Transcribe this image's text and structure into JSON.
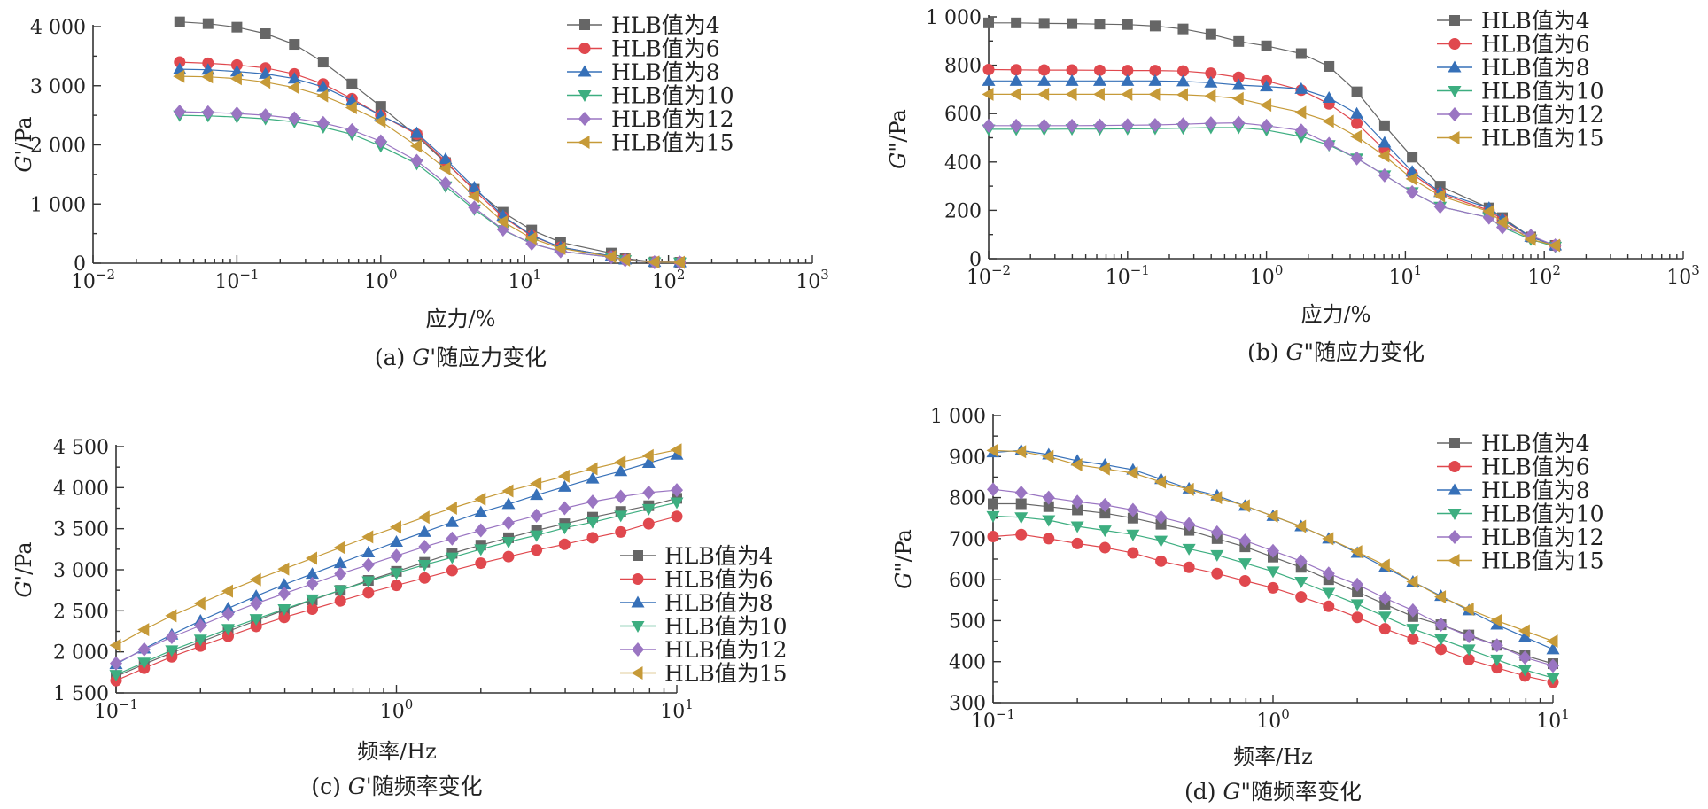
{
  "chart_data": [
    {
      "panel": "a",
      "type": "line",
      "xscale": "log",
      "xlim": [
        0.01,
        1000
      ],
      "ylim": [
        0,
        4000
      ],
      "xticks": [
        0.01,
        0.1,
        1,
        10,
        100,
        1000
      ],
      "xtick_labels": [
        [
          "10",
          "−2"
        ],
        [
          "10",
          "−1"
        ],
        [
          "10",
          "0"
        ],
        [
          "10",
          "1"
        ],
        [
          "10",
          "2"
        ],
        [
          "10",
          "3"
        ]
      ],
      "yticks": [
        0,
        1000,
        2000,
        3000,
        4000
      ],
      "ytick_labels": [
        "0",
        "1 000",
        "2 000",
        "3 000",
        "4 000"
      ],
      "xlabel": "应力/%",
      "ylabel": "G'/Pa",
      "caption": "(a) G'随应力变化",
      "legend": "top-right",
      "x": [
        0.04,
        0.063,
        0.1,
        0.158,
        0.251,
        0.398,
        0.631,
        1.0,
        1.78,
        2.82,
        4.47,
        7.08,
        11.2,
        17.8,
        40,
        50,
        80,
        120
      ],
      "series": [
        {
          "name": "HLB值为4",
          "color": "#666666",
          "marker": "square",
          "values": [
            4080,
            4050,
            3990,
            3880,
            3700,
            3400,
            3030,
            2650,
            2150,
            1700,
            1250,
            860,
            560,
            350,
            170,
            80,
            20,
            15
          ]
        },
        {
          "name": "HLB值为6",
          "color": "#e0484e",
          "marker": "circle",
          "values": [
            3400,
            3380,
            3350,
            3300,
            3200,
            3030,
            2780,
            2500,
            2180,
            1720,
            1230,
            780,
            460,
            270,
            120,
            60,
            20,
            15
          ]
        },
        {
          "name": "HLB值为8",
          "color": "#3670b8",
          "marker": "triangle-up",
          "values": [
            3280,
            3270,
            3240,
            3200,
            3120,
            2980,
            2750,
            2500,
            2200,
            1760,
            1280,
            800,
            470,
            270,
            120,
            60,
            20,
            15
          ]
        },
        {
          "name": "HLB值为10",
          "color": "#3dae80",
          "marker": "triangle-down",
          "values": [
            2500,
            2490,
            2470,
            2440,
            2390,
            2300,
            2180,
            1980,
            1680,
            1300,
            910,
            560,
            330,
            200,
            100,
            50,
            15,
            12
          ]
        },
        {
          "name": "HLB值为12",
          "color": "#9a75c2",
          "marker": "diamond",
          "values": [
            2560,
            2550,
            2530,
            2500,
            2450,
            2370,
            2250,
            2060,
            1730,
            1350,
            940,
            570,
            330,
            200,
            100,
            50,
            15,
            12
          ]
        },
        {
          "name": "HLB值为15",
          "color": "#c69a38",
          "marker": "triangle-left",
          "values": [
            3160,
            3150,
            3120,
            3060,
            2970,
            2830,
            2630,
            2400,
            1980,
            1600,
            1130,
            700,
            420,
            250,
            110,
            55,
            18,
            14
          ]
        }
      ]
    },
    {
      "panel": "b",
      "type": "line",
      "xscale": "log",
      "xlim": [
        0.01,
        1000
      ],
      "ylim": [
        0,
        1000
      ],
      "xticks": [
        0.01,
        0.1,
        1,
        10,
        100,
        1000
      ],
      "xtick_labels": [
        [
          "10",
          "−2"
        ],
        [
          "10",
          "−1"
        ],
        [
          "10",
          "0"
        ],
        [
          "10",
          "1"
        ],
        [
          "10",
          "2"
        ],
        [
          "10",
          "3"
        ]
      ],
      "yticks": [
        0,
        200,
        400,
        600,
        800,
        1000
      ],
      "ytick_labels": [
        "0",
        "200",
        "400",
        "600",
        "800",
        "1 000"
      ],
      "xlabel": "应力/%",
      "ylabel": "G\"/Pa",
      "caption": "(b) G\"随应力变化",
      "legend": "top-right",
      "x": [
        0.01,
        0.0158,
        0.0251,
        0.0398,
        0.0631,
        0.1,
        0.158,
        0.251,
        0.398,
        0.631,
        1.0,
        1.78,
        2.82,
        4.47,
        7.08,
        11.2,
        17.8,
        40,
        50,
        80,
        120
      ],
      "series": [
        {
          "name": "HLB值为4",
          "color": "#666666",
          "marker": "square",
          "values": [
            975,
            975,
            973,
            972,
            970,
            968,
            962,
            950,
            928,
            898,
            880,
            848,
            795,
            690,
            550,
            420,
            300,
            210,
            170,
            90,
            55
          ]
        },
        {
          "name": "HLB值为6",
          "color": "#e0484e",
          "marker": "circle",
          "values": [
            782,
            781,
            780,
            780,
            779,
            778,
            778,
            776,
            767,
            750,
            735,
            697,
            640,
            560,
            450,
            350,
            270,
            200,
            160,
            90,
            55
          ]
        },
        {
          "name": "HLB值为8",
          "color": "#3670b8",
          "marker": "triangle-up",
          "values": [
            735,
            735,
            735,
            735,
            735,
            735,
            735,
            733,
            728,
            718,
            712,
            702,
            665,
            600,
            480,
            360,
            275,
            210,
            165,
            90,
            55
          ]
        },
        {
          "name": "HLB值为10",
          "color": "#3dae80",
          "marker": "triangle-down",
          "values": [
            535,
            535,
            535,
            536,
            536,
            537,
            538,
            540,
            542,
            542,
            532,
            505,
            470,
            415,
            345,
            275,
            215,
            170,
            130,
            80,
            50
          ]
        },
        {
          "name": "HLB值为12",
          "color": "#9a75c2",
          "marker": "diamond",
          "values": [
            550,
            550,
            550,
            550,
            551,
            552,
            553,
            556,
            560,
            562,
            550,
            530,
            475,
            415,
            345,
            275,
            215,
            170,
            130,
            95,
            55
          ]
        },
        {
          "name": "HLB值为15",
          "color": "#c69a38",
          "marker": "triangle-left",
          "values": [
            680,
            680,
            680,
            680,
            680,
            680,
            680,
            678,
            673,
            662,
            635,
            605,
            568,
            505,
            425,
            330,
            260,
            195,
            150,
            80,
            55
          ]
        }
      ]
    },
    {
      "panel": "c",
      "type": "line",
      "xscale": "log",
      "xlim": [
        0.1,
        10
      ],
      "ylim": [
        1500,
        4500
      ],
      "xticks": [
        0.1,
        1,
        10
      ],
      "xtick_labels": [
        [
          "10",
          "−1"
        ],
        [
          "10",
          "0"
        ],
        [
          "10",
          "1"
        ]
      ],
      "yticks": [
        1500,
        2000,
        2500,
        3000,
        3500,
        4000,
        4500
      ],
      "ytick_labels": [
        "1 500",
        "2 000",
        "2 500",
        "3 000",
        "3 500",
        "4 000",
        "4 500"
      ],
      "xlabel": "频率/Hz",
      "ylabel": "G'/Pa",
      "caption": "(c) G'随频率变化",
      "legend": "lower-right",
      "x": [
        0.1,
        0.126,
        0.158,
        0.2,
        0.251,
        0.316,
        0.398,
        0.501,
        0.631,
        0.794,
        1.0,
        1.26,
        1.58,
        2.0,
        2.51,
        3.16,
        3.98,
        5.01,
        6.31,
        7.94,
        10.0
      ],
      "series": [
        {
          "name": "HLB值为4",
          "color": "#666666",
          "marker": "square",
          "values": [
            1700,
            1850,
            1990,
            2120,
            2250,
            2380,
            2510,
            2630,
            2750,
            2870,
            2980,
            3090,
            3200,
            3300,
            3390,
            3480,
            3560,
            3640,
            3710,
            3780,
            3870
          ]
        },
        {
          "name": "HLB值为6",
          "color": "#e0484e",
          "marker": "circle",
          "values": [
            1650,
            1800,
            1940,
            2070,
            2190,
            2310,
            2420,
            2520,
            2620,
            2720,
            2810,
            2900,
            2990,
            3080,
            3160,
            3240,
            3310,
            3390,
            3460,
            3560,
            3650
          ]
        },
        {
          "name": "HLB值为8",
          "color": "#3670b8",
          "marker": "triangle-up",
          "values": [
            1850,
            2040,
            2210,
            2380,
            2530,
            2680,
            2820,
            2950,
            3080,
            3210,
            3340,
            3460,
            3580,
            3700,
            3800,
            3910,
            4010,
            4110,
            4200,
            4300,
            4400
          ]
        },
        {
          "name": "HLB值为10",
          "color": "#3dae80",
          "marker": "triangle-down",
          "values": [
            1720,
            1870,
            2020,
            2150,
            2280,
            2400,
            2520,
            2640,
            2750,
            2860,
            2960,
            3060,
            3150,
            3250,
            3340,
            3420,
            3510,
            3580,
            3660,
            3740,
            3820
          ]
        },
        {
          "name": "HLB值为12",
          "color": "#9a75c2",
          "marker": "diamond",
          "values": [
            1860,
            2030,
            2180,
            2320,
            2460,
            2590,
            2710,
            2830,
            2950,
            3060,
            3170,
            3280,
            3380,
            3480,
            3570,
            3660,
            3750,
            3830,
            3890,
            3940,
            3970
          ]
        },
        {
          "name": "HLB值为15",
          "color": "#c69a38",
          "marker": "triangle-left",
          "values": [
            2080,
            2270,
            2440,
            2590,
            2740,
            2880,
            3010,
            3140,
            3270,
            3400,
            3520,
            3640,
            3750,
            3860,
            3960,
            4050,
            4140,
            4230,
            4310,
            4390,
            4460
          ]
        }
      ]
    },
    {
      "panel": "d",
      "type": "line",
      "xscale": "log",
      "xlim": [
        0.1,
        10
      ],
      "ylim": [
        300,
        1000
      ],
      "xticks": [
        0.1,
        1,
        10
      ],
      "xtick_labels": [
        [
          "10",
          "−1"
        ],
        [
          "10",
          "0"
        ],
        [
          "10",
          "1"
        ]
      ],
      "yticks": [
        300,
        400,
        500,
        600,
        700,
        800,
        900,
        1000
      ],
      "ytick_labels": [
        "300",
        "400",
        "500",
        "600",
        "700",
        "800",
        "900",
        "1 000"
      ],
      "xlabel": "频率/Hz",
      "ylabel": "G\"/Pa",
      "caption": "(d) G\"随频率变化",
      "legend": "top-right",
      "x": [
        0.1,
        0.126,
        0.158,
        0.2,
        0.251,
        0.316,
        0.398,
        0.501,
        0.631,
        0.794,
        1.0,
        1.26,
        1.58,
        2.0,
        2.51,
        3.16,
        3.98,
        5.01,
        6.31,
        7.94,
        10.0
      ],
      "series": [
        {
          "name": "HLB值为4",
          "color": "#666666",
          "marker": "square",
          "values": [
            785,
            785,
            778,
            770,
            762,
            750,
            735,
            720,
            700,
            680,
            655,
            630,
            600,
            570,
            540,
            510,
            490,
            465,
            440,
            415,
            395
          ]
        },
        {
          "name": "HLB值为6",
          "color": "#e0484e",
          "marker": "circle",
          "values": [
            705,
            710,
            700,
            688,
            678,
            665,
            645,
            630,
            615,
            597,
            580,
            558,
            535,
            508,
            480,
            455,
            430,
            405,
            385,
            365,
            350
          ]
        },
        {
          "name": "HLB值为8",
          "color": "#3670b8",
          "marker": "triangle-up",
          "values": [
            910,
            915,
            905,
            890,
            880,
            868,
            845,
            822,
            805,
            780,
            755,
            730,
            700,
            665,
            630,
            595,
            560,
            525,
            490,
            460,
            430
          ]
        },
        {
          "name": "HLB值为10",
          "color": "#3dae80",
          "marker": "triangle-down",
          "values": [
            755,
            752,
            745,
            730,
            720,
            710,
            695,
            675,
            660,
            640,
            620,
            595,
            568,
            540,
            510,
            480,
            455,
            430,
            405,
            380,
            360
          ]
        },
        {
          "name": "HLB值为12",
          "color": "#9a75c2",
          "marker": "diamond",
          "values": [
            820,
            812,
            800,
            790,
            782,
            770,
            752,
            735,
            715,
            695,
            670,
            645,
            615,
            588,
            555,
            525,
            490,
            462,
            440,
            410,
            390
          ]
        },
        {
          "name": "HLB值为15",
          "color": "#c69a38",
          "marker": "triangle-left",
          "values": [
            915,
            912,
            900,
            880,
            870,
            860,
            838,
            820,
            800,
            780,
            755,
            730,
            700,
            668,
            635,
            595,
            558,
            528,
            500,
            475,
            450
          ]
        }
      ]
    }
  ]
}
